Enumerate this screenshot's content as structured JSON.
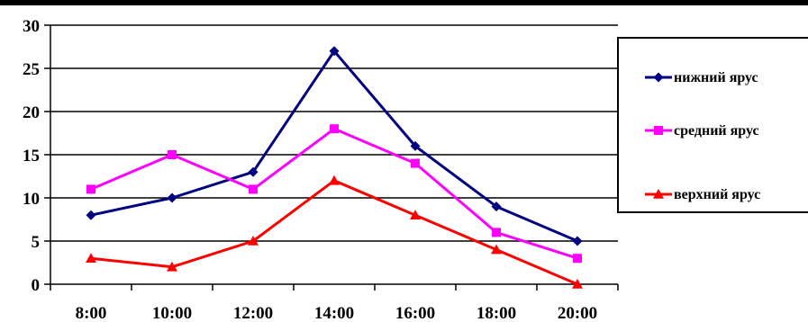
{
  "chart_data": {
    "type": "line",
    "title": "",
    "xlabel": "",
    "ylabel": "",
    "categories": [
      "8:00",
      "10:00",
      "12:00",
      "14:00",
      "16:00",
      "18:00",
      "20:00"
    ],
    "ylim": [
      0,
      30
    ],
    "yticks": [
      "0",
      "5",
      "10",
      "15",
      "20",
      "25",
      "30"
    ],
    "grid": "horizontal",
    "legend_position": "right",
    "series": [
      {
        "name": "нижний ярус",
        "values": [
          8,
          10,
          13,
          27,
          16,
          9,
          5
        ],
        "color": "#000080",
        "marker": "diamond"
      },
      {
        "name": "средний ярус",
        "values": [
          11,
          15,
          11,
          18,
          14,
          6,
          3
        ],
        "color": "#ff00ff",
        "marker": "square"
      },
      {
        "name": "верхний ярус",
        "values": [
          3,
          2,
          5,
          12,
          8,
          4,
          0
        ],
        "color": "#ff0000",
        "marker": "triangle"
      }
    ]
  }
}
